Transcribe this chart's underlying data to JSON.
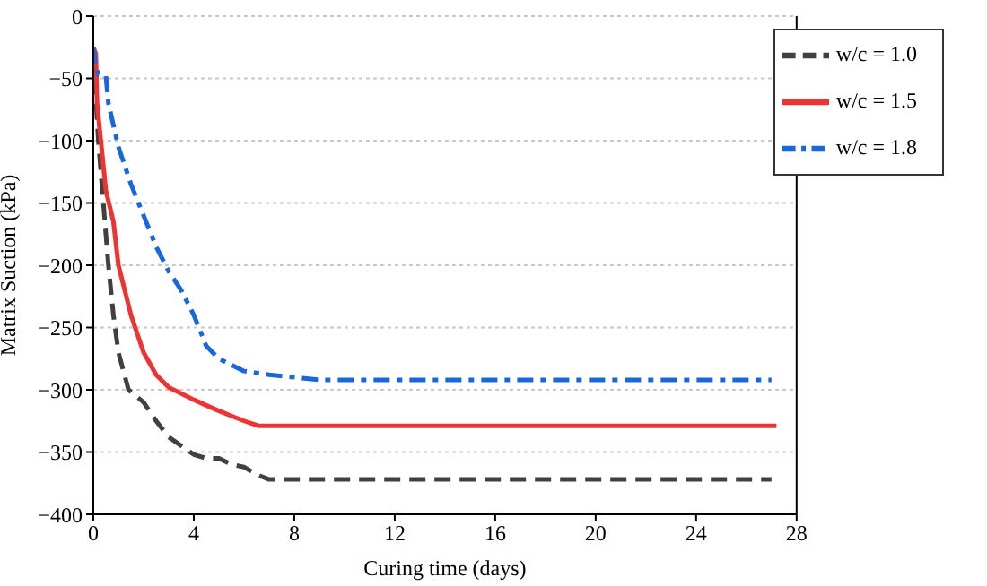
{
  "chart_data": {
    "type": "line",
    "xlabel": "Curing time (days)",
    "ylabel": "Matrix Suction (kPa)",
    "xlim": [
      0,
      28
    ],
    "xticks": [
      0,
      4,
      8,
      12,
      16,
      20,
      24,
      28
    ],
    "ylim": [
      -400,
      0
    ],
    "yticks": [
      -400,
      -350,
      -300,
      -250,
      -200,
      -150,
      -100,
      -50,
      0
    ],
    "grid": "y",
    "legend": "top right",
    "marker": "none",
    "series": [
      {
        "name": "w/c = 1.0",
        "color": "#404040",
        "line_style": "dashed",
        "x": [
          0,
          0.2,
          0.4,
          0.6,
          0.8,
          1,
          1.4,
          2,
          2.5,
          3,
          3.5,
          4,
          4.5,
          5,
          5.5,
          6,
          6.5,
          7,
          8,
          12,
          16,
          20,
          24,
          27
        ],
        "values": [
          -30,
          -100,
          -150,
          -200,
          -240,
          -270,
          -300,
          -310,
          -325,
          -338,
          -345,
          -352,
          -355,
          -355,
          -360,
          -362,
          -368,
          -372,
          -372,
          -372,
          -372,
          -372,
          -372,
          -372
        ]
      },
      {
        "name": "w/c = 1.5",
        "color": "#ee3333",
        "line_style": "solid",
        "x": [
          0,
          0.1,
          0.15,
          0.3,
          0.5,
          0.8,
          1,
          1.5,
          2,
          2.5,
          3,
          4,
          5,
          6,
          6.6,
          10,
          15,
          20,
          27.2
        ],
        "values": [
          -25,
          -30,
          -70,
          -100,
          -140,
          -165,
          -200,
          -240,
          -270,
          -288,
          -298,
          -308,
          -317,
          -325,
          -329,
          -329,
          -329,
          -329,
          -329
        ]
      },
      {
        "name": "w/c = 1.8",
        "color": "#1a66dd",
        "line_style": "dashdot",
        "x": [
          0,
          0.1,
          0.2,
          0.5,
          0.6,
          1,
          1.5,
          2,
          2.5,
          3,
          3.5,
          4,
          4.5,
          5,
          6,
          7,
          8,
          9,
          14,
          20,
          27
        ],
        "values": [
          -25,
          -40,
          -47,
          -48,
          -70,
          -105,
          -135,
          -160,
          -185,
          -205,
          -220,
          -240,
          -265,
          -275,
          -285,
          -288,
          -290,
          -292,
          -292,
          -292,
          -292
        ]
      }
    ]
  }
}
